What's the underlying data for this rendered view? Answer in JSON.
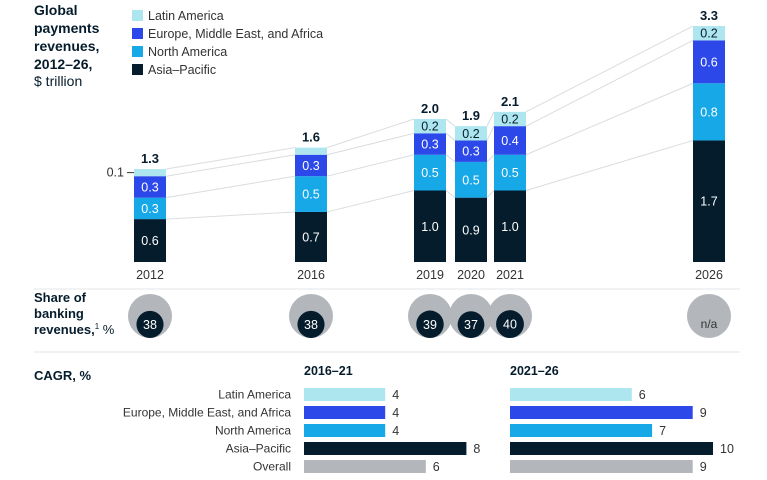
{
  "colors": {
    "latin_america": "#aee6f0",
    "emea": "#2c48e8",
    "north_america": "#17a8e8",
    "asia_pacific": "#051c2c",
    "overall": "#b3b7bb",
    "circle_outer": "#b3b7bb",
    "circle_inner": "#051c2c",
    "circle_na": "#b3b7bb"
  },
  "title_lines": [
    "Global",
    "payments",
    "revenues,",
    "2012–26,"
  ],
  "unit_line": "$ trillion",
  "share_label": {
    "line1": "Share of",
    "line2": "banking",
    "line3": "revenues,",
    "sup": "1",
    "unit": " %"
  },
  "cagr_label": "CAGR, %",
  "chart_data": [
    {
      "type": "bar",
      "stacked": true,
      "categories": [
        "2012",
        "2016",
        "2019",
        "2020",
        "2021",
        "2026"
      ],
      "series": [
        {
          "name": "Asia–Pacific",
          "values": [
            0.6,
            0.7,
            1.0,
            0.9,
            1.0,
            1.7
          ],
          "labels": [
            "0.6",
            "0.7",
            "1.0",
            "0.9",
            "1.0",
            "1.7"
          ]
        },
        {
          "name": "North America",
          "values": [
            0.3,
            0.5,
            0.5,
            0.5,
            0.5,
            0.8
          ],
          "labels": [
            "0.3",
            "0.5",
            "0.5",
            "0.5",
            "0.5",
            "0.8"
          ]
        },
        {
          "name": "Europe, Middle East, and Africa",
          "values": [
            0.3,
            0.3,
            0.3,
            0.3,
            0.4,
            0.6
          ],
          "labels": [
            "0.3",
            "0.3",
            "0.3",
            "0.3",
            "0.4",
            "0.6"
          ]
        },
        {
          "name": "Latin America",
          "values": [
            0.1,
            0.1,
            0.2,
            0.2,
            0.2,
            0.2
          ],
          "labels": [
            "0.1",
            "",
            "0.2",
            "0.2",
            "0.2",
            "0.2"
          ]
        }
      ],
      "totals": [
        "1.3",
        "1.6",
        "2.0",
        "1.9",
        "2.1",
        "3.3"
      ],
      "legend_order": [
        "Latin America",
        "Europe, Middle East, and Africa",
        "North America",
        "Asia–Pacific"
      ],
      "legend_position": "top-left"
    },
    {
      "type": "bubble",
      "categories": [
        "2012",
        "2016",
        "2019",
        "2020",
        "2021",
        "2026"
      ],
      "values": [
        38,
        38,
        39,
        37,
        40,
        null
      ],
      "labels": [
        "38",
        "38",
        "39",
        "37",
        "40",
        "n/a"
      ]
    },
    {
      "type": "bar",
      "orientation": "horizontal",
      "title": "2016–21",
      "categories": [
        "Latin America",
        "Europe, Middle East, and Africa",
        "North America",
        "Asia–Pacific",
        "Overall"
      ],
      "values": [
        4,
        4,
        4,
        8,
        6
      ]
    },
    {
      "type": "bar",
      "orientation": "horizontal",
      "title": "2021–26",
      "categories": [
        "Latin America",
        "Europe, Middle East, and Africa",
        "North America",
        "Asia–Pacific",
        "Overall"
      ],
      "values": [
        6,
        9,
        7,
        10,
        9
      ]
    }
  ]
}
